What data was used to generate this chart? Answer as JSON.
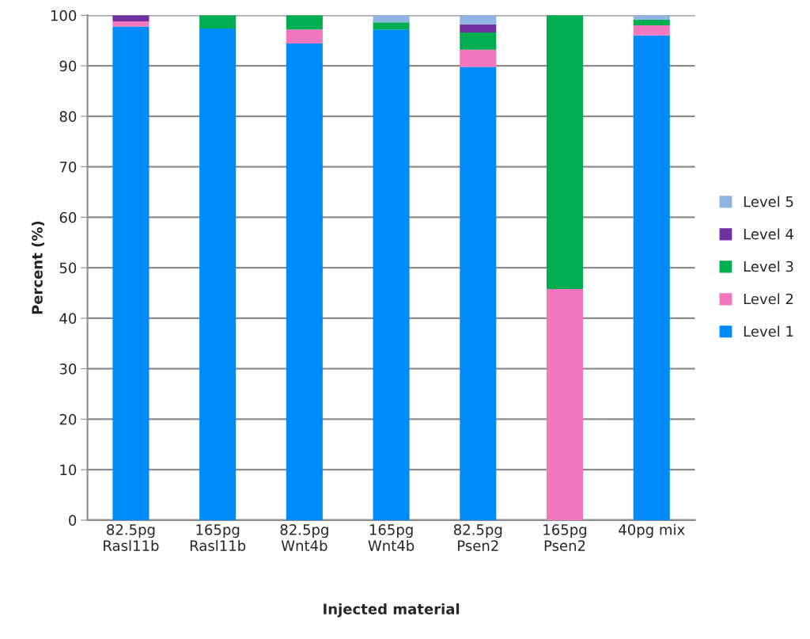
{
  "chart_data": {
    "type": "bar",
    "stacked": true,
    "xlabel": "Injected material",
    "ylabel": "Percent (%)",
    "categories": [
      "82.5pg\nRasl11b",
      "165pg\nRasl11b",
      "82.5pg\nWnt4b",
      "165pg\nWnt4b",
      "82.5pg\nPsen2",
      "165pg\nPsen2",
      "40pg mix"
    ],
    "series": [
      {
        "name": "Level 1",
        "color": "#008cf8",
        "values": [
          97.8,
          97.4,
          94.4,
          97.2,
          89.8,
          null,
          96.0
        ]
      },
      {
        "name": "Level 2",
        "color": "#f277bf",
        "values": [
          1.0,
          null,
          2.8,
          null,
          3.4,
          45.8,
          2.0
        ]
      },
      {
        "name": "Level 3",
        "color": "#00ae4f",
        "values": [
          null,
          2.6,
          2.8,
          1.4,
          3.4,
          54.2,
          1.1
        ]
      },
      {
        "name": "Level 4",
        "color": "#7030a0",
        "values": [
          1.2,
          null,
          null,
          null,
          1.6,
          null,
          null
        ]
      },
      {
        "name": "Level 5",
        "color": "#8db4e2",
        "values": [
          null,
          null,
          null,
          1.4,
          1.8,
          null,
          0.9
        ]
      }
    ],
    "ylim": [
      0,
      100
    ],
    "yticks": [
      0,
      10,
      20,
      30,
      40,
      50,
      60,
      70,
      80,
      90,
      100
    ],
    "grid": "y",
    "legend": "right"
  }
}
